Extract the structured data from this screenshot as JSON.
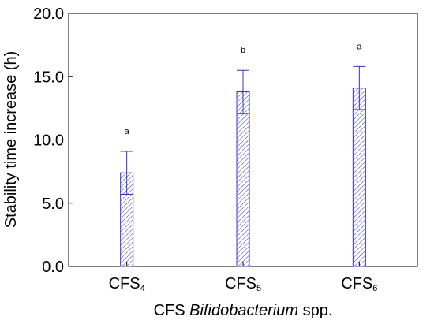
{
  "chart_data": {
    "type": "bar",
    "title": "",
    "xlabel": {
      "prefix": "CFS ",
      "italic": "Bifidobacterium",
      "suffix": " spp."
    },
    "ylabel": "Stability time increase (h)",
    "ylim": [
      0,
      20
    ],
    "yticks": [
      "0.0",
      "5.0",
      "10.0",
      "15.0",
      "20.0"
    ],
    "grid": false,
    "categories": [
      {
        "base": "CFS",
        "sub": "4"
      },
      {
        "base": "CFS",
        "sub": "5"
      },
      {
        "base": "CFS",
        "sub": "6"
      }
    ],
    "series": [
      {
        "values": [
          7.4,
          13.8,
          14.1
        ],
        "error": [
          1.7,
          1.7,
          1.7
        ],
        "significance": [
          "a",
          "b",
          "a"
        ]
      }
    ],
    "bar_color": "#3333cc",
    "bar_fill": "diagonal hatch"
  }
}
